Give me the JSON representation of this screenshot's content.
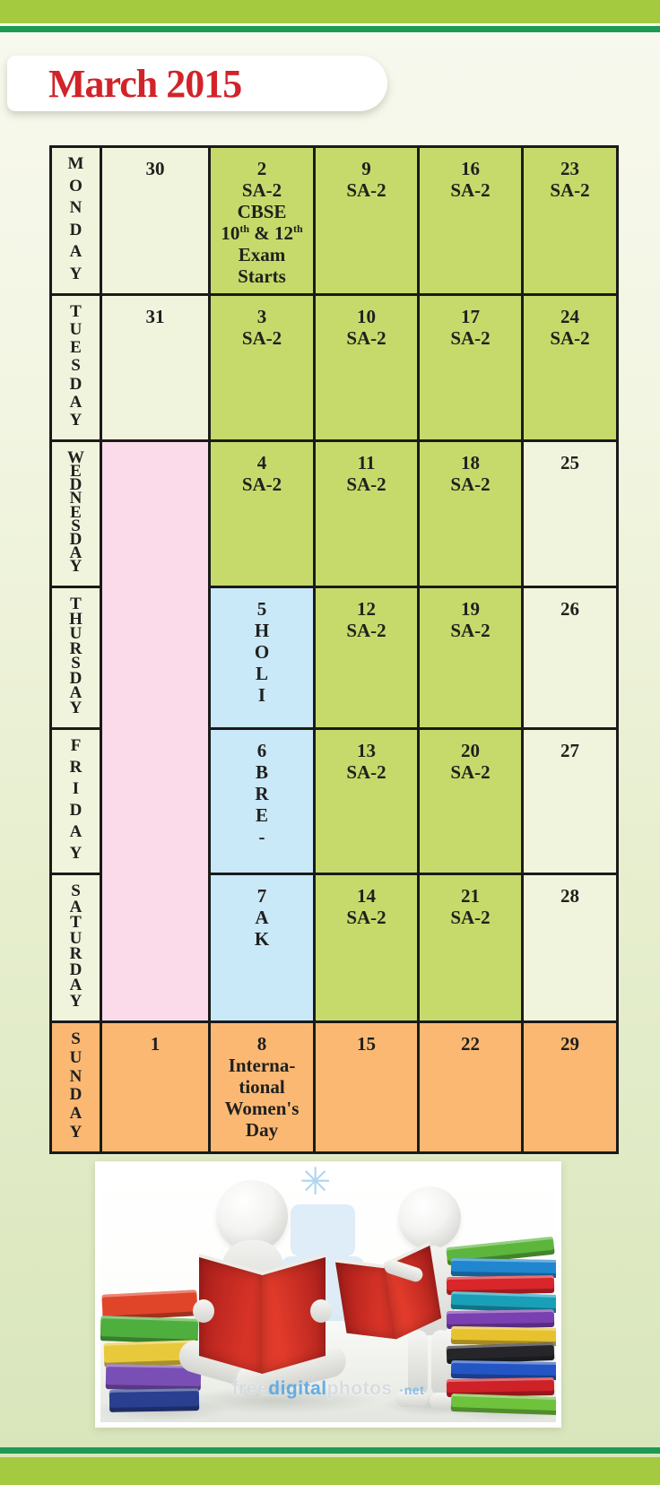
{
  "page": {
    "title": "March 2015"
  },
  "calendar": {
    "rows": [
      {
        "label": "MONDAY",
        "cells": [
          {
            "bg": "cream",
            "lines": [
              "30"
            ]
          },
          {
            "bg": "green",
            "lines": [
              "2",
              "SA-2",
              "CBSE",
              "10th & 12th",
              "Exam",
              "Starts"
            ]
          },
          {
            "bg": "green",
            "lines": [
              "9",
              "SA-2"
            ]
          },
          {
            "bg": "green",
            "lines": [
              "16",
              "SA-2"
            ]
          },
          {
            "bg": "green",
            "lines": [
              "23",
              "SA-2"
            ]
          }
        ]
      },
      {
        "label": "TUESDAY",
        "cells": [
          {
            "bg": "cream",
            "lines": [
              "31"
            ]
          },
          {
            "bg": "green",
            "lines": [
              "3",
              "SA-2"
            ]
          },
          {
            "bg": "green",
            "lines": [
              "10",
              "SA-2"
            ]
          },
          {
            "bg": "green",
            "lines": [
              "17",
              "SA-2"
            ]
          },
          {
            "bg": "green",
            "lines": [
              "24",
              "SA-2"
            ]
          }
        ]
      },
      {
        "label": "WEDNESDAY",
        "cells": [
          {
            "bg": "pink",
            "rowspan": 4,
            "lines": []
          },
          {
            "bg": "green",
            "lines": [
              "4",
              "SA-2"
            ]
          },
          {
            "bg": "green",
            "lines": [
              "11",
              "SA-2"
            ]
          },
          {
            "bg": "green",
            "lines": [
              "18",
              "SA-2"
            ]
          },
          {
            "bg": "cream",
            "lines": [
              "25"
            ]
          }
        ]
      },
      {
        "label": "THURSDAY",
        "cells": [
          {
            "bg": "blue",
            "lines": [
              "5",
              "H",
              "O",
              "L",
              "I"
            ]
          },
          {
            "bg": "green",
            "lines": [
              "12",
              "SA-2"
            ]
          },
          {
            "bg": "green",
            "lines": [
              "19",
              "SA-2"
            ]
          },
          {
            "bg": "cream",
            "lines": [
              "26"
            ]
          }
        ]
      },
      {
        "label": "FRIDAY",
        "cells": [
          {
            "bg": "blue",
            "lines": [
              "6",
              "B",
              "R",
              "E",
              "-"
            ]
          },
          {
            "bg": "green",
            "lines": [
              "13",
              "SA-2"
            ]
          },
          {
            "bg": "green",
            "lines": [
              "20",
              "SA-2"
            ]
          },
          {
            "bg": "cream",
            "lines": [
              "27"
            ]
          }
        ]
      },
      {
        "label": "SATURDAY",
        "cells": [
          {
            "bg": "blue",
            "lines": [
              "7",
              "A",
              "K"
            ]
          },
          {
            "bg": "green",
            "lines": [
              "14",
              "SA-2"
            ]
          },
          {
            "bg": "green",
            "lines": [
              "21",
              "SA-2"
            ]
          },
          {
            "bg": "cream",
            "lines": [
              "28"
            ]
          }
        ]
      },
      {
        "label": "SUNDAY",
        "label_bg": "orange",
        "cells": [
          {
            "bg": "orange",
            "lines": [
              "1"
            ]
          },
          {
            "bg": "orange",
            "lines": [
              "8",
              "Interna-",
              "tional",
              "Women's",
              "Day"
            ]
          },
          {
            "bg": "orange",
            "lines": [
              "15"
            ]
          },
          {
            "bg": "orange",
            "lines": [
              "22"
            ]
          },
          {
            "bg": "orange",
            "lines": [
              "29"
            ]
          }
        ]
      }
    ]
  },
  "photo": {
    "watermark": {
      "free": "free",
      "digital": "digital",
      "photos": "photos",
      "net": "·net"
    }
  },
  "colors": {
    "exam_green": "#c6da6b",
    "holiday_blue": "#c9e8f8",
    "break_pink": "#fbdbea",
    "sunday_orange": "#fbb873",
    "empty_cream": "#f1f4dd",
    "bar_lightgreen": "#a4cb3f",
    "bar_darkgreen": "#1e9a55",
    "title_red": "#d2232a",
    "grid_border": "#1a1a1a"
  }
}
